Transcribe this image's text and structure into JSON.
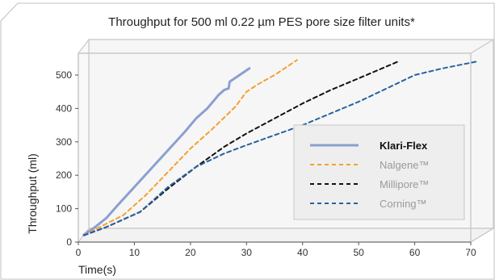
{
  "colors": {
    "background": "#ffffff",
    "plot_back_wall": "#f6f6f6",
    "frame_line": "#c8c8c8",
    "legend_fill": "#eeeeee",
    "legend_border": "#c8c8c8"
  },
  "chart_data": {
    "type": "line",
    "title": "Throughput for 500 ml 0.22 µm PES pore size filter units*",
    "xlabel": "Time(s)",
    "ylabel": "Throughput (ml)",
    "xlim": [
      0,
      70
    ],
    "ylim": [
      0,
      500
    ],
    "x_ticks": [
      0,
      10,
      20,
      30,
      40,
      50,
      60,
      70
    ],
    "y_ticks": [
      0,
      100,
      200,
      300,
      400,
      500
    ],
    "grid": false,
    "legend_position": "right",
    "series": [
      {
        "name": "Klari-Flex",
        "color": "#8b9fd0",
        "style": "solid",
        "bold_label": true,
        "x": [
          1,
          3,
          5,
          7,
          10,
          13,
          16,
          19,
          21,
          23,
          25,
          26,
          26.8,
          27,
          30.5
        ],
        "y": [
          22,
          45,
          72,
          110,
          165,
          220,
          275,
          330,
          370,
          400,
          440,
          455,
          460,
          480,
          520
        ]
      },
      {
        "name": "Nalgene™",
        "color": "#f5a030",
        "style": "dashed",
        "bold_label": false,
        "x": [
          1,
          5,
          8,
          12,
          16,
          20,
          24,
          28,
          30,
          32,
          35,
          39
        ],
        "y": [
          20,
          55,
          80,
          140,
          210,
          280,
          340,
          405,
          450,
          472,
          500,
          545
        ]
      },
      {
        "name": "Millipore™",
        "color": "#111111",
        "style": "dashed",
        "bold_label": false,
        "x": [
          1,
          5,
          11,
          16,
          21,
          26,
          30,
          35,
          40,
          45,
          50,
          57
        ],
        "y": [
          20,
          45,
          90,
          160,
          225,
          285,
          325,
          370,
          415,
          455,
          490,
          540
        ]
      },
      {
        "name": "Corning™",
        "color": "#2a62a0",
        "style": "dashed",
        "bold_label": false,
        "x": [
          1,
          5,
          11,
          16,
          21,
          26,
          30,
          35,
          40,
          45,
          50,
          55,
          60,
          65,
          71
        ],
        "y": [
          20,
          45,
          90,
          165,
          225,
          265,
          290,
          320,
          350,
          385,
          420,
          460,
          500,
          520,
          540
        ]
      }
    ]
  }
}
